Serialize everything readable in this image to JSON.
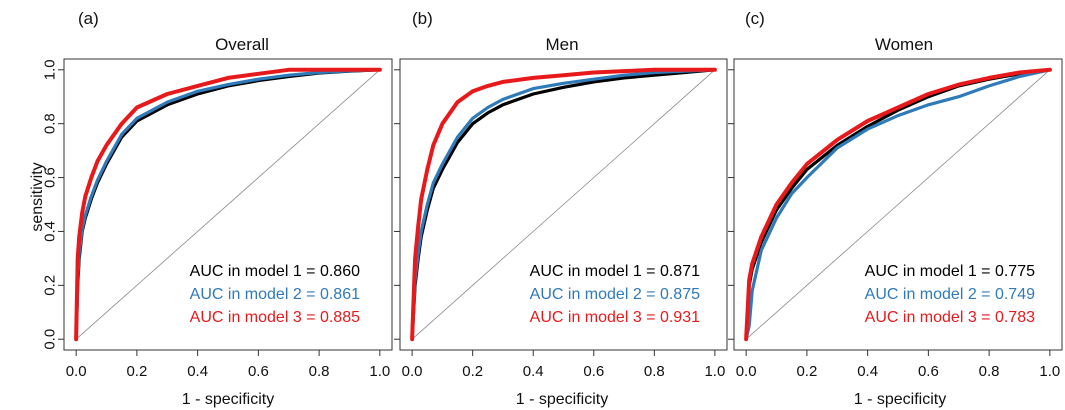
{
  "chart_data": [
    {
      "type": "line",
      "panel_label": "(a)",
      "title": "Overall",
      "xlabel": "1 - specificity",
      "ylabel": "sensitivity",
      "xlim": [
        0,
        1
      ],
      "ylim": [
        0,
        1
      ],
      "x_ticks": [
        "0.0",
        "0.2",
        "0.4",
        "0.6",
        "0.8",
        "1.0"
      ],
      "y_ticks": [
        "0.0",
        "0.2",
        "0.4",
        "0.6",
        "0.8",
        "1.0"
      ],
      "diagonal_reference": true,
      "series": [
        {
          "color": "#000000",
          "x": [
            0,
            0.005,
            0.01,
            0.02,
            0.03,
            0.05,
            0.07,
            0.1,
            0.15,
            0.2,
            0.3,
            0.4,
            0.5,
            0.6,
            0.7,
            0.8,
            0.9,
            1.0
          ],
          "y": [
            0,
            0.2,
            0.3,
            0.4,
            0.45,
            0.52,
            0.58,
            0.65,
            0.75,
            0.81,
            0.87,
            0.91,
            0.94,
            0.96,
            0.975,
            0.988,
            0.995,
            1.0
          ]
        },
        {
          "color": "#2f7ab9",
          "x": [
            0,
            0.005,
            0.01,
            0.02,
            0.03,
            0.05,
            0.07,
            0.1,
            0.15,
            0.2,
            0.3,
            0.4,
            0.5,
            0.6,
            0.7,
            0.8,
            0.9,
            1.0
          ],
          "y": [
            0,
            0.22,
            0.32,
            0.41,
            0.46,
            0.53,
            0.59,
            0.66,
            0.76,
            0.82,
            0.88,
            0.92,
            0.945,
            0.965,
            0.98,
            0.99,
            0.996,
            1.0
          ]
        },
        {
          "color": "#e8191b",
          "x": [
            0,
            0.005,
            0.01,
            0.02,
            0.03,
            0.05,
            0.07,
            0.1,
            0.15,
            0.2,
            0.3,
            0.4,
            0.5,
            0.6,
            0.7,
            0.8,
            0.9,
            1.0
          ],
          "y": [
            0,
            0.3,
            0.38,
            0.47,
            0.53,
            0.6,
            0.66,
            0.72,
            0.8,
            0.86,
            0.91,
            0.94,
            0.97,
            0.985,
            1.0,
            1.0,
            1.0,
            1.0
          ]
        }
      ],
      "annotations": [
        {
          "text": "AUC in model 1 = 0.860",
          "color": "#000000"
        },
        {
          "text": "AUC in model 2 = 0.861",
          "color": "#2f7ab9"
        },
        {
          "text": "AUC in model 3 = 0.885",
          "color": "#e8191b"
        }
      ]
    },
    {
      "type": "line",
      "panel_label": "(b)",
      "title": "Men",
      "xlabel": "1 - specificity",
      "xlim": [
        0,
        1
      ],
      "ylim": [
        0,
        1
      ],
      "x_ticks": [
        "0.0",
        "0.2",
        "0.4",
        "0.6",
        "0.8",
        "1.0"
      ],
      "diagonal_reference": true,
      "series": [
        {
          "color": "#000000",
          "x": [
            0,
            0.01,
            0.02,
            0.03,
            0.05,
            0.07,
            0.1,
            0.15,
            0.2,
            0.25,
            0.3,
            0.4,
            0.5,
            0.6,
            0.7,
            0.8,
            0.9,
            1.0
          ],
          "y": [
            0,
            0.2,
            0.3,
            0.38,
            0.48,
            0.56,
            0.63,
            0.73,
            0.8,
            0.84,
            0.87,
            0.91,
            0.935,
            0.955,
            0.97,
            0.98,
            0.99,
            1.0
          ]
        },
        {
          "color": "#2f7ab9",
          "x": [
            0,
            0.01,
            0.02,
            0.03,
            0.05,
            0.07,
            0.1,
            0.15,
            0.2,
            0.25,
            0.3,
            0.4,
            0.5,
            0.6,
            0.7,
            0.8,
            0.9,
            1.0
          ],
          "y": [
            0,
            0.22,
            0.32,
            0.4,
            0.5,
            0.58,
            0.65,
            0.75,
            0.82,
            0.86,
            0.89,
            0.93,
            0.95,
            0.965,
            0.98,
            0.99,
            0.995,
            1.0
          ]
        },
        {
          "color": "#e8191b",
          "x": [
            0,
            0.01,
            0.02,
            0.03,
            0.05,
            0.07,
            0.1,
            0.15,
            0.2,
            0.25,
            0.3,
            0.4,
            0.5,
            0.6,
            0.7,
            0.8,
            0.9,
            1.0
          ],
          "y": [
            0,
            0.3,
            0.42,
            0.52,
            0.63,
            0.72,
            0.8,
            0.88,
            0.92,
            0.94,
            0.955,
            0.97,
            0.98,
            0.99,
            0.995,
            1.0,
            1.0,
            1.0
          ]
        }
      ],
      "annotations": [
        {
          "text": "AUC in model 1 = 0.871",
          "color": "#000000"
        },
        {
          "text": "AUC in model 2 = 0.875",
          "color": "#2f7ab9"
        },
        {
          "text": "AUC in model 3 = 0.931",
          "color": "#e8191b"
        }
      ]
    },
    {
      "type": "line",
      "panel_label": "(c)",
      "title": "Women",
      "xlabel": "1 - specificity",
      "xlim": [
        0,
        1
      ],
      "ylim": [
        0,
        1
      ],
      "x_ticks": [
        "0.0",
        "0.2",
        "0.4",
        "0.6",
        "0.8",
        "1.0"
      ],
      "diagonal_reference": true,
      "series": [
        {
          "color": "#000000",
          "x": [
            0,
            0.01,
            0.02,
            0.05,
            0.1,
            0.15,
            0.2,
            0.3,
            0.4,
            0.5,
            0.6,
            0.7,
            0.8,
            0.9,
            1.0
          ],
          "y": [
            0,
            0.2,
            0.26,
            0.36,
            0.48,
            0.56,
            0.63,
            0.72,
            0.79,
            0.85,
            0.9,
            0.94,
            0.965,
            0.985,
            1.0
          ]
        },
        {
          "color": "#2f7ab9",
          "x": [
            0,
            0.01,
            0.02,
            0.05,
            0.1,
            0.15,
            0.2,
            0.3,
            0.4,
            0.5,
            0.6,
            0.7,
            0.8,
            0.9,
            1.0
          ],
          "y": [
            0,
            0.05,
            0.18,
            0.33,
            0.45,
            0.54,
            0.6,
            0.71,
            0.78,
            0.83,
            0.87,
            0.9,
            0.94,
            0.975,
            1.0
          ]
        },
        {
          "color": "#e8191b",
          "x": [
            0,
            0.01,
            0.02,
            0.05,
            0.1,
            0.15,
            0.2,
            0.3,
            0.4,
            0.5,
            0.6,
            0.7,
            0.8,
            0.9,
            1.0
          ],
          "y": [
            0,
            0.22,
            0.28,
            0.38,
            0.5,
            0.58,
            0.65,
            0.74,
            0.81,
            0.86,
            0.91,
            0.945,
            0.97,
            0.99,
            1.0
          ]
        }
      ],
      "annotations": [
        {
          "text": "AUC in model 1 = 0.775",
          "color": "#000000"
        },
        {
          "text": "AUC in model 2 = 0.749",
          "color": "#2f7ab9"
        },
        {
          "text": "AUC in model 3 = 0.783",
          "color": "#e8191b"
        }
      ]
    }
  ]
}
